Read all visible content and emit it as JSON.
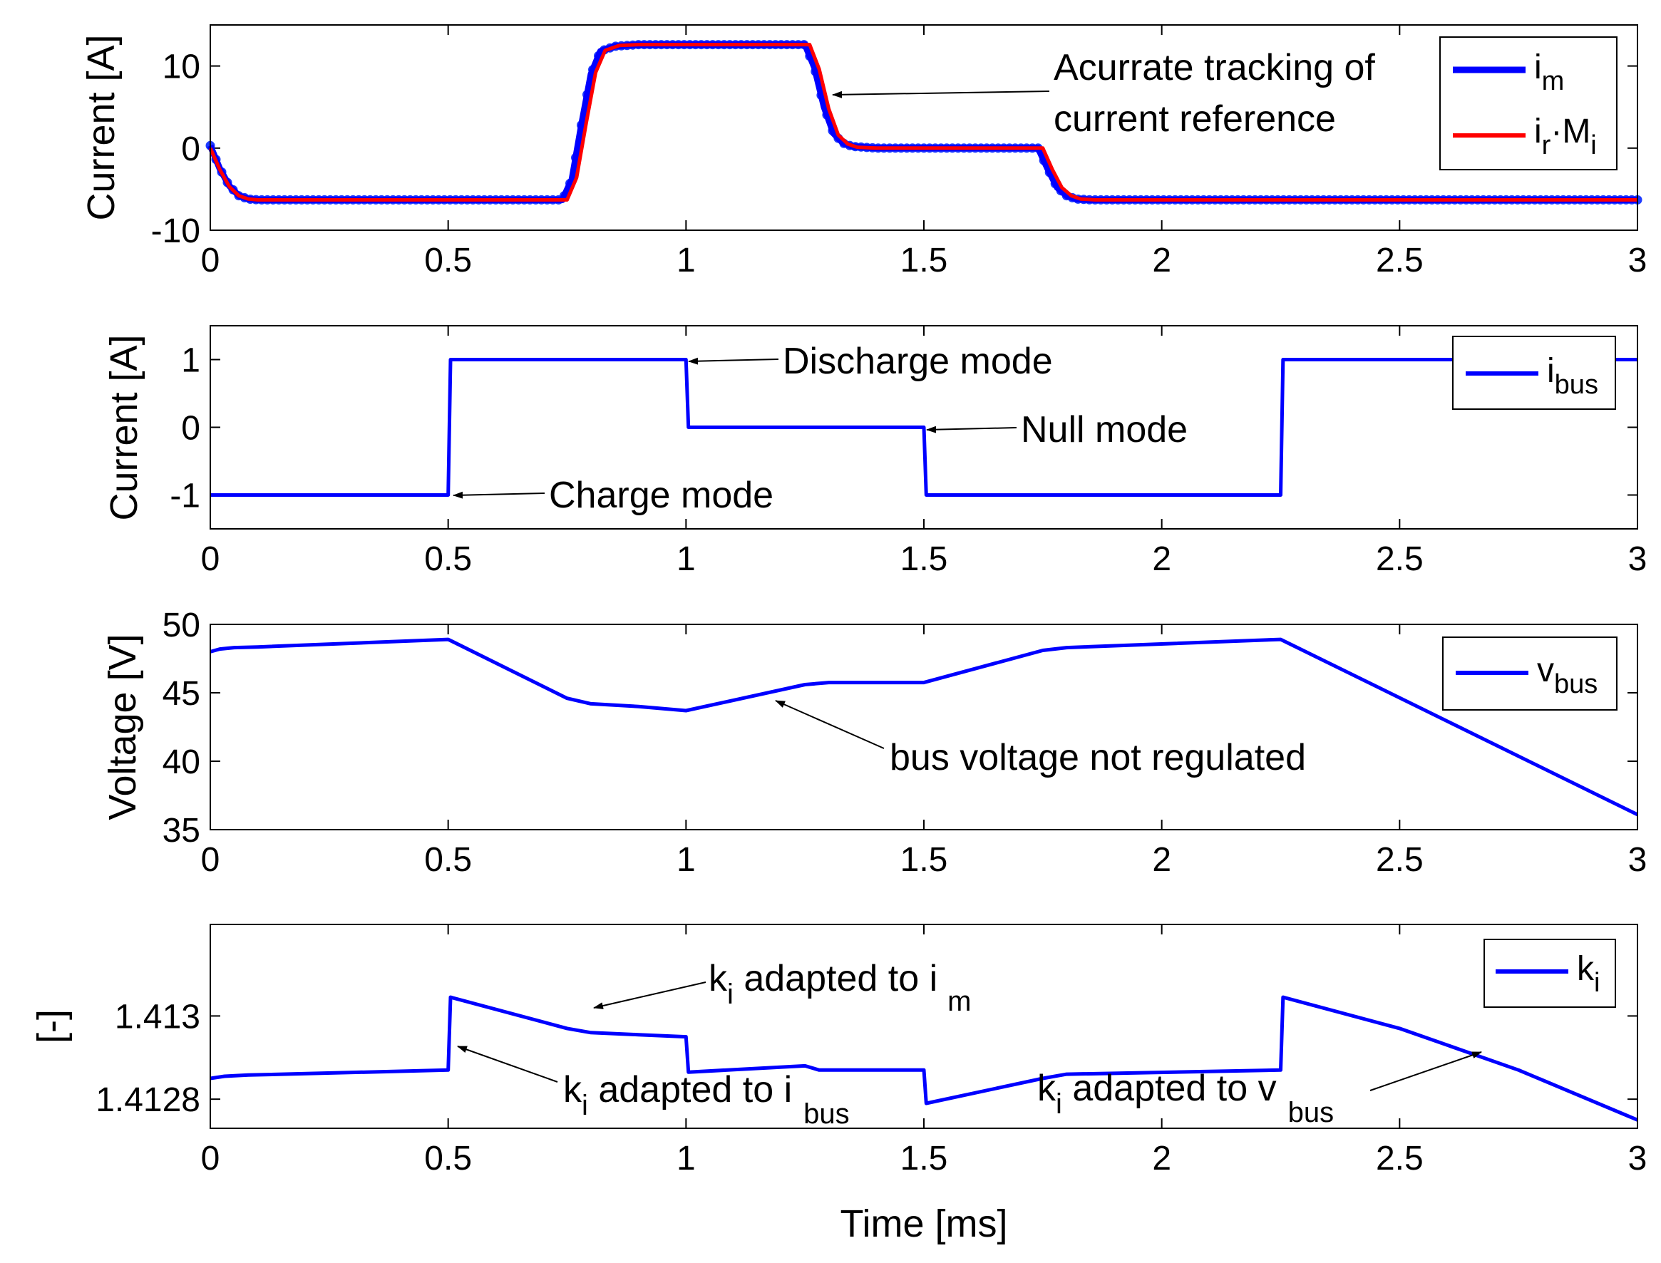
{
  "colors": {
    "blue": "#0000ff",
    "red": "#ff0000",
    "black": "#000000",
    "marker": "#1f3cff"
  },
  "chart_data": [
    {
      "type": "line",
      "id": "p1",
      "ylabel": "Current [A]",
      "xlabel": "",
      "xlim": [
        0,
        3
      ],
      "ylim": [
        -10,
        15
      ],
      "xticks": [
        0,
        0.5,
        1,
        1.5,
        2,
        2.5,
        3
      ],
      "xtick_labels": [
        "0",
        "0.5",
        "1",
        "1.5",
        "2",
        "2.5",
        "3"
      ],
      "yticks": [
        -10,
        0,
        10
      ],
      "ytick_labels": [
        "-10",
        "0",
        "10"
      ],
      "series": [
        {
          "name": "i_m",
          "label_main": "i",
          "label_sub": "m",
          "label_main2": "",
          "label_sub2": "",
          "color": "#0000ff",
          "width": 9,
          "markers": true,
          "x": [
            0,
            0.02,
            0.04,
            0.06,
            0.08,
            0.1,
            0.74,
            0.76,
            0.78,
            0.8,
            0.82,
            0.85,
            0.9,
            1.25,
            1.27,
            1.29,
            1.31,
            1.33,
            1.35,
            1.4,
            1.74,
            1.76,
            1.78,
            1.8,
            1.82,
            1.85,
            1.9,
            3
          ],
          "y": [
            0.3,
            -2.5,
            -4.6,
            -5.8,
            -6.2,
            -6.3,
            -6.3,
            -3.8,
            2.8,
            9,
            11.8,
            12.4,
            12.6,
            12.6,
            9.8,
            5,
            1.8,
            0.6,
            0.2,
            0,
            0,
            -2.5,
            -4.8,
            -5.8,
            -6.2,
            -6.3,
            -6.3,
            -6.3
          ]
        },
        {
          "name": "i_r·M_i",
          "label_main": "i",
          "label_sub": "r",
          "label_main2": "·M",
          "label_sub2": "i",
          "color": "#ff0000",
          "width": 5,
          "markers": false,
          "x": [
            0,
            0.02,
            0.04,
            0.06,
            0.08,
            0.1,
            0.75,
            0.77,
            0.79,
            0.81,
            0.83,
            0.86,
            0.9,
            1.26,
            1.28,
            1.3,
            1.32,
            1.34,
            1.36,
            1.4,
            1.75,
            1.77,
            1.79,
            1.81,
            1.83,
            1.86,
            1.9,
            3
          ],
          "y": [
            0,
            -2.6,
            -4.7,
            -5.8,
            -6.2,
            -6.3,
            -6.3,
            -3.6,
            3,
            9.2,
            11.9,
            12.5,
            12.6,
            12.6,
            9.6,
            4.8,
            1.6,
            0.5,
            0.1,
            0,
            0,
            -2.6,
            -4.8,
            -5.8,
            -6.2,
            -6.3,
            -6.3,
            -6.3
          ]
        }
      ]
    },
    {
      "type": "line",
      "id": "p2",
      "ylabel": "Current [A]",
      "xlabel": "",
      "xlim": [
        0,
        3
      ],
      "ylim": [
        -1.5,
        1.5
      ],
      "xticks": [
        0,
        0.5,
        1,
        1.5,
        2,
        2.5,
        3
      ],
      "xtick_labels": [
        "0",
        "0.5",
        "1",
        "1.5",
        "2",
        "2.5",
        "3"
      ],
      "yticks": [
        -1,
        0,
        1
      ],
      "ytick_labels": [
        "-1",
        "0",
        "1"
      ],
      "series": [
        {
          "name": "i_bus",
          "label_main": "i",
          "label_sub": "bus",
          "label_main2": "",
          "label_sub2": "",
          "color": "#0000ff",
          "width": 5,
          "markers": false,
          "x": [
            0,
            0.5,
            0.505,
            1,
            1.005,
            1.5,
            1.505,
            2.25,
            2.255,
            3
          ],
          "y": [
            -1,
            -1,
            1,
            1,
            0,
            0,
            -1,
            -1,
            1,
            1
          ]
        }
      ]
    },
    {
      "type": "line",
      "id": "p3",
      "ylabel": "Voltage [V]",
      "xlabel": "",
      "xlim": [
        0,
        3
      ],
      "ylim": [
        35,
        50
      ],
      "xticks": [
        0,
        0.5,
        1,
        1.5,
        2,
        2.5,
        3
      ],
      "xtick_labels": [
        "0",
        "0.5",
        "1",
        "1.5",
        "2",
        "2.5",
        "3"
      ],
      "yticks": [
        35,
        40,
        45,
        50
      ],
      "ytick_labels": [
        "35",
        "40",
        "45",
        "50"
      ],
      "series": [
        {
          "name": "v_bus",
          "label_main": "v",
          "label_sub": "bus",
          "label_main2": "",
          "label_sub2": "",
          "color": "#0000ff",
          "width": 5,
          "markers": false,
          "x": [
            0,
            0.02,
            0.05,
            0.1,
            0.5,
            0.75,
            0.8,
            0.9,
            1,
            1.25,
            1.3,
            1.5,
            1.75,
            1.8,
            2.25,
            3
          ],
          "y": [
            48,
            48.2,
            48.3,
            48.35,
            48.9,
            44.6,
            44.2,
            44.0,
            43.7,
            45.6,
            45.75,
            45.75,
            48.1,
            48.3,
            48.9,
            36.1
          ]
        }
      ]
    },
    {
      "type": "line",
      "id": "p4",
      "ylabel": "[-]",
      "xlabel": "Time [ms]",
      "xlim": [
        0,
        3
      ],
      "ylim": [
        1.41273,
        1.41322
      ],
      "xticks": [
        0,
        0.5,
        1,
        1.5,
        2,
        2.5,
        3
      ],
      "xtick_labels": [
        "0",
        "0.5",
        "1",
        "1.5",
        "2",
        "2.5",
        "3"
      ],
      "yticks": [
        1.4128,
        1.413
      ],
      "ytick_labels": [
        "1.4128",
        "1.413"
      ],
      "series": [
        {
          "name": "k_i",
          "label_main": "k",
          "label_sub": "i",
          "label_main2": "",
          "label_sub2": "",
          "color": "#0000ff",
          "width": 5,
          "markers": false,
          "x": [
            0,
            0.03,
            0.08,
            0.5,
            0.505,
            0.75,
            0.8,
            0.9,
            1,
            1.005,
            1.25,
            1.28,
            1.5,
            1.505,
            1.75,
            1.8,
            2.25,
            2.255,
            2.5,
            2.75,
            3
          ],
          "y": [
            1.41285,
            1.412855,
            1.412858,
            1.41287,
            1.413045,
            1.41297,
            1.41296,
            1.412955,
            1.41295,
            1.412865,
            1.41288,
            1.41287,
            1.41287,
            1.41279,
            1.41285,
            1.41286,
            1.41287,
            1.413045,
            1.41297,
            1.41287,
            1.41275
          ]
        }
      ]
    }
  ],
  "annotations": {
    "tracking_line1": "Acurrate tracking of",
    "tracking_line2": "current reference",
    "discharge": "Discharge mode",
    "null_mode": "Null mode",
    "charge": "Charge mode",
    "bus_voltage": "bus voltage not regulated",
    "ki_im_main": "k",
    "ki_im_sub": "i",
    "ki_im_text": " adapted to i",
    "ki_im_sub2": "m",
    "ki_ibus_main": "k",
    "ki_ibus_sub": "i",
    "ki_ibus_text": " adapted to i",
    "ki_ibus_sub2": "bus",
    "ki_vbus_main": "k",
    "ki_vbus_sub": "i",
    "ki_vbus_text": " adapted to v",
    "ki_vbus_sub2": "bus"
  }
}
